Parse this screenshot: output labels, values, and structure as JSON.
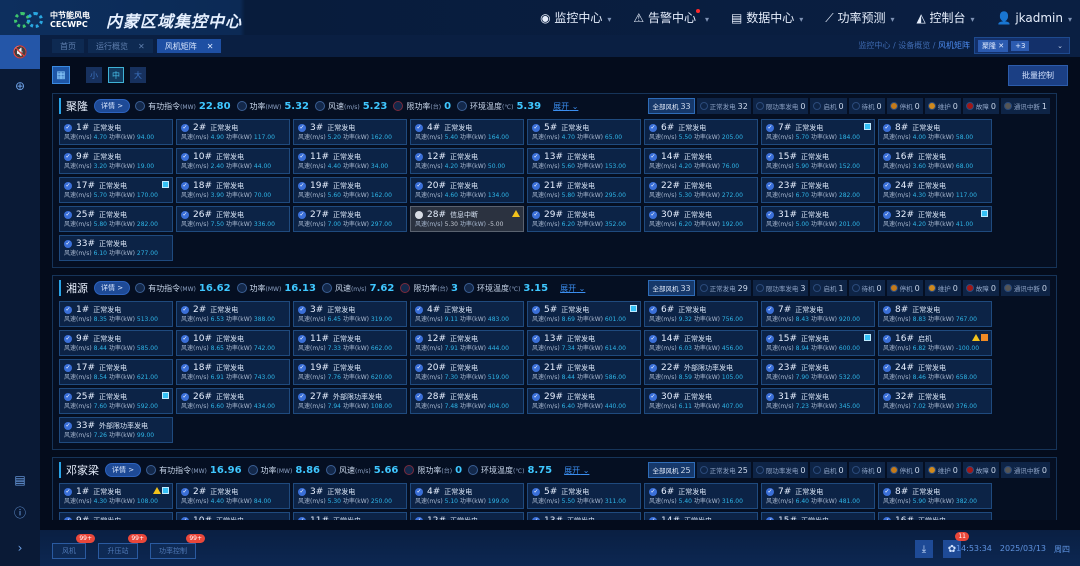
{
  "header": {
    "brand_cn": "中节能风电",
    "brand_en": "CECWPC",
    "title": "内蒙区域集控中心",
    "nav": [
      {
        "label": "监控中心",
        "icon": "monitor-icon"
      },
      {
        "label": "告警中心",
        "icon": "alarm-icon",
        "dot": true
      },
      {
        "label": "数据中心",
        "icon": "data-icon"
      },
      {
        "label": "功率预测",
        "icon": "chart-icon"
      },
      {
        "label": "控制台",
        "icon": "console-icon"
      },
      {
        "label": "jkadmin",
        "icon": "user-icon"
      }
    ]
  },
  "tabs": [
    {
      "label": "首页",
      "closable": false
    },
    {
      "label": "运行概览",
      "closable": true
    },
    {
      "label": "风机矩阵",
      "closable": true,
      "active": true
    }
  ],
  "breadcrumb": {
    "path": "监控中心 / 设备概览 / ",
    "current": "风机矩阵"
  },
  "farm_select": {
    "tag": "聚隆",
    "more": "+3"
  },
  "toolbar": {
    "sizes": [
      "小",
      "中",
      "大"
    ],
    "active_size": "中",
    "batch": "批量控制"
  },
  "labels": {
    "detail": "详情 >",
    "cmd": "有功指令",
    "power": "功率",
    "wind": "风速",
    "limit": "限功率",
    "temp": "环境温度",
    "u_mw": "(MW)",
    "u_ms": "(m/s)",
    "u_t": "(台)",
    "u_c": "(℃)",
    "expand": "展开",
    "ws": "风速(m/s)",
    "pw": "功率(kW)"
  },
  "filters": [
    "全部风机",
    "正常发电",
    "限功率发电",
    "启机",
    "待机",
    "停机",
    "维护",
    "故障",
    "通讯中断"
  ],
  "colors": {
    "accent": "#3fc7ff",
    "card_bg": "#0c2346",
    "warn": "#f2c21b",
    "badge": "#e9473a"
  },
  "sections": [
    {
      "name": "聚隆",
      "cmd": "22.80",
      "power": "5.32",
      "wind": "5.23",
      "limit": "0",
      "temp": "5.39",
      "counts": [
        33,
        32,
        0,
        0,
        0,
        0,
        0,
        0,
        1
      ],
      "cards": [
        [
          "1#",
          "正常发电",
          "4.70",
          "94.00"
        ],
        [
          "2#",
          "正常发电",
          "4.90",
          "117.00"
        ],
        [
          "3#",
          "正常发电",
          "5.20",
          "162.00"
        ],
        [
          "4#",
          "正常发电",
          "5.40",
          "164.00"
        ],
        [
          "5#",
          "正常发电",
          "4.70",
          "65.00"
        ],
        [
          "6#",
          "正常发电",
          "5.50",
          "205.00"
        ],
        [
          "7#",
          "正常发电",
          "5.70",
          "184.00",
          "f"
        ],
        [
          "8#",
          "正常发电",
          "4.00",
          "58.00"
        ],
        [
          "9#",
          "正常发电",
          "3.20",
          "19.00"
        ],
        [
          "10#",
          "正常发电",
          "2.40",
          "44.00"
        ],
        [
          "11#",
          "正常发电",
          "4.40",
          "34.00"
        ],
        [
          "12#",
          "正常发电",
          "4.20",
          "50.00"
        ],
        [
          "13#",
          "正常发电",
          "5.60",
          "153.00"
        ],
        [
          "14#",
          "正常发电",
          "4.20",
          "76.00"
        ],
        [
          "15#",
          "正常发电",
          "5.90",
          "152.00"
        ],
        [
          "16#",
          "正常发电",
          "3.60",
          "68.00"
        ],
        [
          "17#",
          "正常发电",
          "5.70",
          "170.00",
          "f"
        ],
        [
          "18#",
          "正常发电",
          "3.90",
          "70.00"
        ],
        [
          "19#",
          "正常发电",
          "5.60",
          "162.00"
        ],
        [
          "20#",
          "正常发电",
          "4.60",
          "134.00"
        ],
        [
          "21#",
          "正常发电",
          "5.80",
          "295.00"
        ],
        [
          "22#",
          "正常发电",
          "5.30",
          "272.00"
        ],
        [
          "23#",
          "正常发电",
          "6.70",
          "282.00"
        ],
        [
          "24#",
          "正常发电",
          "4.30",
          "117.00"
        ],
        [
          "25#",
          "正常发电",
          "5.80",
          "282.00"
        ],
        [
          "26#",
          "正常发电",
          "7.50",
          "336.00"
        ],
        [
          "27#",
          "正常发电",
          "7.00",
          "297.00"
        ],
        [
          "28#",
          "信息中断",
          "5.30",
          "-5.00",
          "w"
        ],
        [
          "29#",
          "正常发电",
          "6.20",
          "352.00"
        ],
        [
          "30#",
          "正常发电",
          "6.20",
          "192.00"
        ],
        [
          "31#",
          "正常发电",
          "5.00",
          "201.00"
        ],
        [
          "32#",
          "正常发电",
          "4.20",
          "41.00",
          "f"
        ],
        [
          "33#",
          "正常发电",
          "6.10",
          "277.00"
        ]
      ]
    },
    {
      "name": "湘源",
      "cmd": "16.62",
      "power": "16.13",
      "wind": "7.62",
      "limit": "3",
      "temp": "3.15",
      "counts": [
        33,
        29,
        3,
        1,
        0,
        0,
        0,
        0,
        0
      ],
      "cards": [
        [
          "1#",
          "正常发电",
          "8.35",
          "513.00"
        ],
        [
          "2#",
          "正常发电",
          "6.53",
          "388.00"
        ],
        [
          "3#",
          "正常发电",
          "6.45",
          "319.00"
        ],
        [
          "4#",
          "正常发电",
          "9.11",
          "483.00"
        ],
        [
          "5#",
          "正常发电",
          "8.69",
          "601.00",
          "f"
        ],
        [
          "6#",
          "正常发电",
          "9.32",
          "756.00"
        ],
        [
          "7#",
          "正常发电",
          "8.43",
          "920.00"
        ],
        [
          "8#",
          "正常发电",
          "8.83",
          "767.00"
        ],
        [
          "9#",
          "正常发电",
          "8.44",
          "585.00"
        ],
        [
          "10#",
          "正常发电",
          "8.65",
          "742.00"
        ],
        [
          "11#",
          "正常发电",
          "7.33",
          "662.00"
        ],
        [
          "12#",
          "正常发电",
          "7.91",
          "444.00"
        ],
        [
          "13#",
          "正常发电",
          "7.34",
          "614.00"
        ],
        [
          "14#",
          "正常发电",
          "6.03",
          "456.00"
        ],
        [
          "15#",
          "正常发电",
          "8.94",
          "600.00",
          "f"
        ],
        [
          "16#",
          "启机",
          "6.82",
          "-100.00",
          "wo"
        ],
        [
          "17#",
          "正常发电",
          "8.54",
          "621.00"
        ],
        [
          "18#",
          "正常发电",
          "6.91",
          "743.00"
        ],
        [
          "19#",
          "正常发电",
          "7.76",
          "620.00"
        ],
        [
          "20#",
          "正常发电",
          "7.30",
          "519.00"
        ],
        [
          "21#",
          "正常发电",
          "8.44",
          "586.00"
        ],
        [
          "22#",
          "外部限功率发电",
          "8.59",
          "105.00"
        ],
        [
          "23#",
          "正常发电",
          "7.90",
          "532.00"
        ],
        [
          "24#",
          "正常发电",
          "8.46",
          "658.00"
        ],
        [
          "25#",
          "正常发电",
          "7.60",
          "592.00",
          "f"
        ],
        [
          "26#",
          "正常发电",
          "6.60",
          "434.00"
        ],
        [
          "27#",
          "外部限功率发电",
          "7.94",
          "108.00"
        ],
        [
          "28#",
          "正常发电",
          "7.48",
          "404.00"
        ],
        [
          "29#",
          "正常发电",
          "6.40",
          "440.00"
        ],
        [
          "30#",
          "正常发电",
          "6.11",
          "407.00"
        ],
        [
          "31#",
          "正常发电",
          "7.23",
          "345.00"
        ],
        [
          "32#",
          "正常发电",
          "7.02",
          "376.00"
        ],
        [
          "33#",
          "外部限功率发电",
          "7.26",
          "99.00"
        ]
      ]
    },
    {
      "name": "邓家梁",
      "cmd": "16.96",
      "power": "8.86",
      "wind": "5.66",
      "limit": "0",
      "temp": "8.75",
      "counts": [
        25,
        25,
        0,
        0,
        0,
        0,
        0,
        0,
        0
      ],
      "cards": [
        [
          "1#",
          "正常发电",
          "4.30",
          "108.00",
          "wf"
        ],
        [
          "2#",
          "正常发电",
          "4.40",
          "84.00"
        ],
        [
          "3#",
          "正常发电",
          "5.30",
          "250.00"
        ],
        [
          "4#",
          "正常发电",
          "5.10",
          "199.00"
        ],
        [
          "5#",
          "正常发电",
          "5.50",
          "311.00"
        ],
        [
          "6#",
          "正常发电",
          "5.40",
          "316.00"
        ],
        [
          "7#",
          "正常发电",
          "6.40",
          "481.00"
        ],
        [
          "8#",
          "正常发电",
          "5.90",
          "382.00"
        ],
        [
          "9#",
          "正常发电"
        ],
        [
          "10#",
          "正常发电"
        ],
        [
          "11#",
          "正常发电"
        ],
        [
          "12#",
          "正常发电"
        ],
        [
          "13#",
          "正常发电"
        ],
        [
          "14#",
          "正常发电"
        ],
        [
          "15#",
          "正常发电"
        ],
        [
          "16#",
          "正常发电"
        ]
      ]
    }
  ],
  "bottom": {
    "buttons": [
      {
        "label": "风机",
        "badge": "99+"
      },
      {
        "label": "升压站",
        "badge": "99+"
      },
      {
        "label": "功率控制",
        "badge": "99+"
      }
    ],
    "alarm_count": "11",
    "time": "14:53:34",
    "date": "2025/03/13",
    "weekday": "周四"
  }
}
